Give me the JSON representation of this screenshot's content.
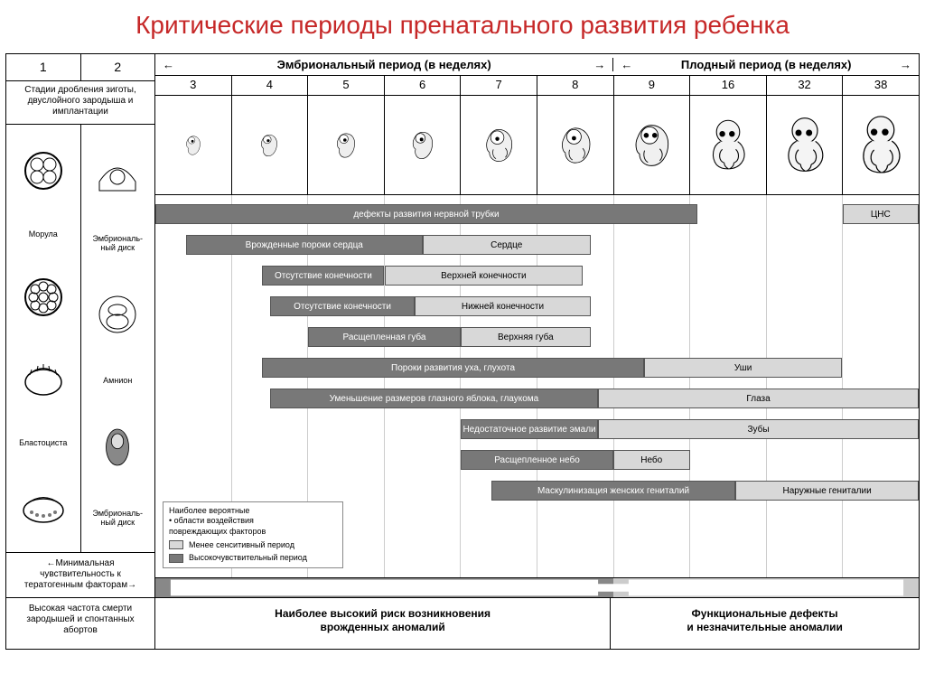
{
  "title": "Критические периоды пренатального\nразвития ребенка",
  "periods": {
    "embryonic": "Эмбриональный период (в неделях)",
    "fetal": "Плодный период (в неделях)"
  },
  "weeks_pre": [
    "1",
    "2"
  ],
  "weeks": [
    "3",
    "4",
    "5",
    "6",
    "7",
    "8",
    "9",
    "16",
    "32",
    "38"
  ],
  "left": {
    "stages": "Стадии дробления зиготы, двуслойного зародыша и имплантации",
    "col1": {
      "a": "Морула",
      "b": "Бластоциста"
    },
    "col2": {
      "a": "Эмбриональ-\nный диск",
      "b": "Амнион",
      "c": "Эмбриональ-\nный диск"
    },
    "noteA": "Минимальная чувствительность к тератогенным факторам",
    "noteB": "Высокая частота смерти зародышей и спонтанных абортов"
  },
  "n_weeks": 10,
  "bars": [
    {
      "row": 0,
      "segs": [
        {
          "start": 0.0,
          "end": 7.1,
          "style": "dark",
          "label": "дефекты развития нервной трубки"
        },
        {
          "start": 9.0,
          "end": 10.0,
          "style": "light",
          "label": "ЦНС"
        }
      ]
    },
    {
      "row": 1,
      "segs": [
        {
          "start": 0.4,
          "end": 3.5,
          "style": "dark",
          "label": "Врожденные пороки сердца"
        },
        {
          "start": 3.5,
          "end": 5.7,
          "style": "light",
          "label": "Сердце"
        }
      ]
    },
    {
      "row": 2,
      "segs": [
        {
          "start": 1.4,
          "end": 3.0,
          "style": "dark",
          "label": "Отсутствие конечности"
        },
        {
          "start": 3.0,
          "end": 5.6,
          "style": "light",
          "label": "Верхней конечности"
        }
      ]
    },
    {
      "row": 3,
      "segs": [
        {
          "start": 1.5,
          "end": 3.4,
          "style": "dark",
          "label": "Отсутствие конечности"
        },
        {
          "start": 3.4,
          "end": 5.7,
          "style": "light",
          "label": "Нижней конечности"
        }
      ]
    },
    {
      "row": 4,
      "segs": [
        {
          "start": 2.0,
          "end": 4.0,
          "style": "dark",
          "label": "Расщепленная губа"
        },
        {
          "start": 4.0,
          "end": 5.7,
          "style": "light",
          "label": "Верхняя губа"
        }
      ]
    },
    {
      "row": 5,
      "segs": [
        {
          "start": 1.4,
          "end": 6.4,
          "style": "dark",
          "label": "Пороки развития уха, глухота"
        },
        {
          "start": 6.4,
          "end": 9.0,
          "style": "light",
          "label": "Уши"
        }
      ]
    },
    {
      "row": 6,
      "segs": [
        {
          "start": 1.5,
          "end": 5.8,
          "style": "dark",
          "label": "Уменьшение размеров глазного яблока, глаукома"
        },
        {
          "start": 5.8,
          "end": 10.0,
          "style": "light",
          "label": "Глаза"
        }
      ]
    },
    {
      "row": 7,
      "segs": [
        {
          "start": 4.0,
          "end": 5.8,
          "style": "dark",
          "label": "Недостаточное развитие эмали"
        },
        {
          "start": 5.8,
          "end": 10.0,
          "style": "light",
          "label": "Зубы"
        }
      ]
    },
    {
      "row": 8,
      "segs": [
        {
          "start": 4.0,
          "end": 6.0,
          "style": "dark",
          "label": "Расщепленное небо"
        },
        {
          "start": 6.0,
          "end": 7.0,
          "style": "light",
          "label": "Небо"
        }
      ]
    },
    {
      "row": 9,
      "segs": [
        {
          "start": 4.4,
          "end": 7.6,
          "style": "dark",
          "label": "Маскулинизация женских гениталий"
        },
        {
          "start": 7.6,
          "end": 10.0,
          "style": "light",
          "label": "Наружные гениталии"
        }
      ]
    }
  ],
  "legend": {
    "title": "Наиболее вероятные\n• области воздействия\nповреждающих факторов",
    "light": "Менее сенситивный период",
    "dark": "Высокочувствительный период"
  },
  "bottom": {
    "a": "Наиболее высокий риск возникновения\nврожденных аномалий",
    "b": "Функциональные дефекты\nи незначительные аномалии"
  },
  "colors": {
    "dark": "#787878",
    "light": "#d8d8d8",
    "title": "#c62828",
    "border": "#000000"
  }
}
